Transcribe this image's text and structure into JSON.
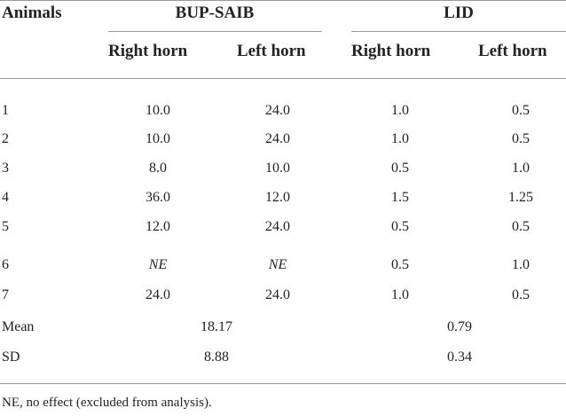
{
  "table": {
    "headers": {
      "animals": "Animals",
      "group1": "BUP-SAIB",
      "group2": "LID",
      "right_horn": "Right horn",
      "left_horn": "Left horn"
    },
    "rows": [
      {
        "animal": "1",
        "bup_right": "10.0",
        "bup_left": "24.0",
        "lid_right": "1.0",
        "lid_left": "0.5"
      },
      {
        "animal": "2",
        "bup_right": "10.0",
        "bup_left": "24.0",
        "lid_right": "1.0",
        "lid_left": "0.5"
      },
      {
        "animal": "3",
        "bup_right": "8.0",
        "bup_left": "10.0",
        "lid_right": "0.5",
        "lid_left": "1.0"
      },
      {
        "animal": "4",
        "bup_right": "36.0",
        "bup_left": "12.0",
        "lid_right": "1.5",
        "lid_left": "1.25"
      },
      {
        "animal": "5",
        "bup_right": "12.0",
        "bup_left": "24.0",
        "lid_right": "0.5",
        "lid_left": "0.5"
      },
      {
        "animal": "6",
        "bup_right": "NE",
        "bup_left": "NE",
        "lid_right": "0.5",
        "lid_left": "1.0"
      },
      {
        "animal": "7",
        "bup_right": "24.0",
        "bup_left": "24.0",
        "lid_right": "1.0",
        "lid_left": "0.5"
      }
    ],
    "mean": {
      "label": "Mean",
      "bup": "18.17",
      "lid": "0.79"
    },
    "sd": {
      "label": "SD",
      "bup": "8.88",
      "lid": "0.34"
    },
    "footnote": "NE, no effect (excluded from analysis)."
  }
}
